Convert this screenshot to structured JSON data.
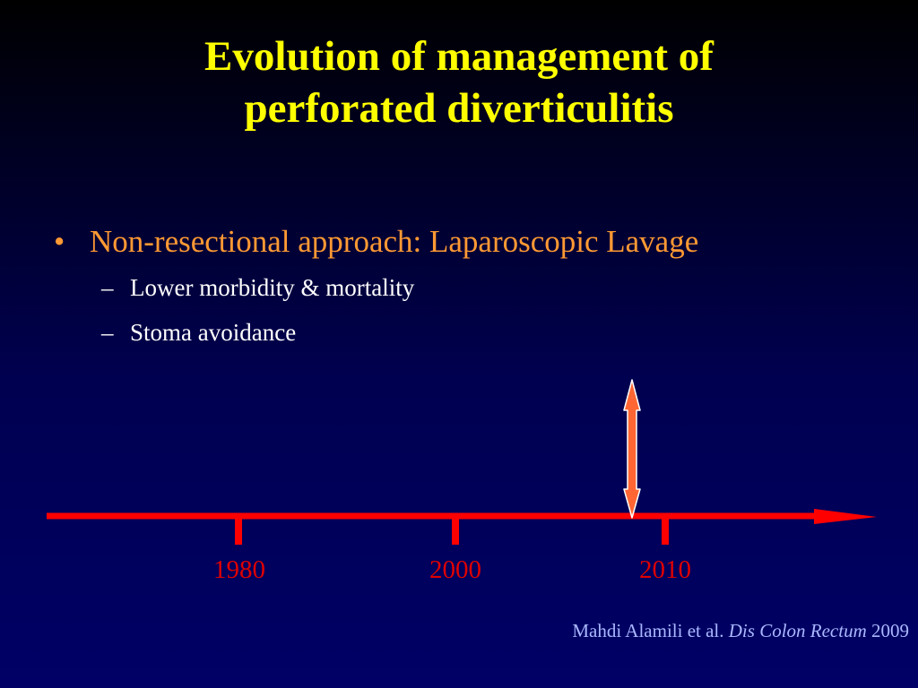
{
  "slide": {
    "title_line1": "Evolution of management of",
    "title_line2": "perforated diverticulitis",
    "bullet_symbol": "•",
    "bullet": "Non-resectional approach: Laparoscopic Lavage",
    "sub_symbol": "–",
    "sub_items": [
      "Lower morbidity & mortality",
      "Stoma avoidance"
    ]
  },
  "timeline": {
    "years": [
      "1980",
      "2000",
      "2010"
    ],
    "line_color": "#ff0000",
    "marker_color": "#ff6633"
  },
  "citation": {
    "authors": "Mahdi Alamili et al.",
    "journal": "Dis Colon Rectum",
    "year": "2009"
  }
}
